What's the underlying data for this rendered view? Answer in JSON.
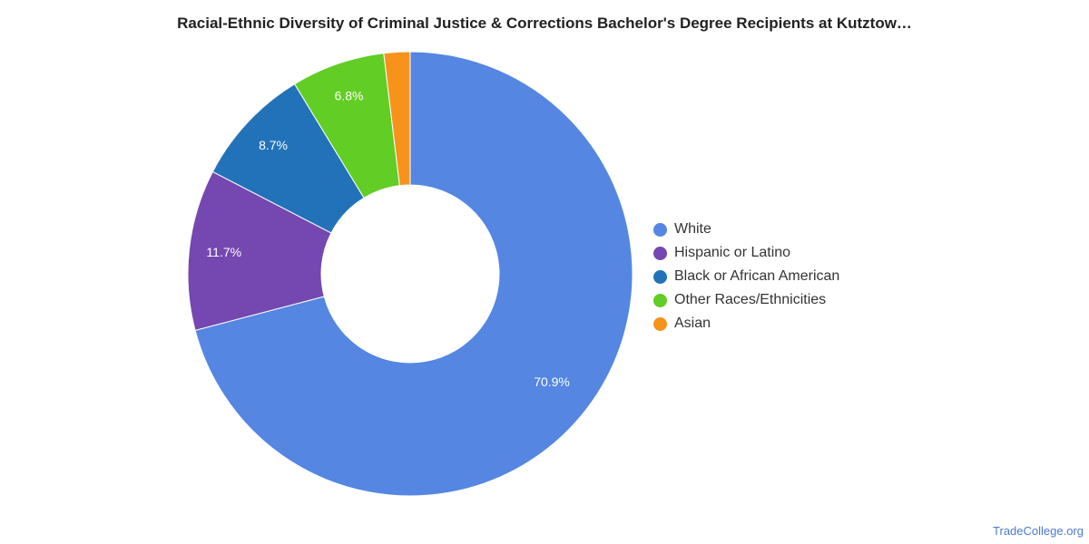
{
  "chart_data": {
    "type": "pie",
    "subtype": "donut",
    "title": "Racial-Ethnic Diversity of Criminal Justice & Corrections Bachelor's Degree Recipients at Kutztow…",
    "legend_position": "right",
    "slices": [
      {
        "label": "White",
        "value": 70.9,
        "display": "70.9%",
        "color": "#5486e2"
      },
      {
        "label": "Hispanic or Latino",
        "value": 11.7,
        "display": "11.7%",
        "color": "#7448b0"
      },
      {
        "label": "Black or African American",
        "value": 8.7,
        "display": "8.7%",
        "color": "#2272b9"
      },
      {
        "label": "Other Races/Ethnicities",
        "value": 6.8,
        "display": "6.8%",
        "color": "#62cd25"
      },
      {
        "label": "Asian",
        "value": 1.9,
        "display": "",
        "color": "#f7931a"
      }
    ]
  },
  "watermark": "TradeCollege.org"
}
